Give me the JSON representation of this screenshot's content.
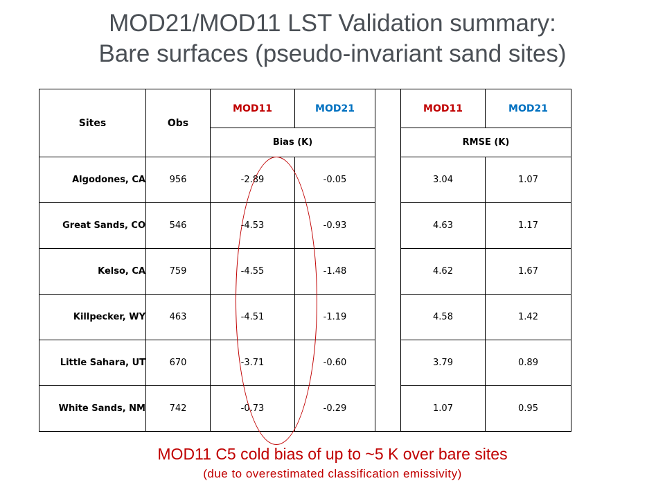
{
  "slide": {
    "title_line1": "MOD21/MOD11 LST Validation summary:",
    "title_line2": "Bare surfaces (pseudo-invariant sand sites)",
    "note_main": "MOD11 C5 cold bias of up to ~5 K over  bare sites",
    "note_sub": "(due to overestimated classification emissivity)"
  },
  "table": {
    "headers": {
      "sites": "Sites",
      "obs": "Obs",
      "bias_mod11": "MOD11",
      "bias_mod21": "MOD21",
      "rmse_mod11": "MOD11",
      "rmse_mod21": "MOD21",
      "bias_group": "Bias (K)",
      "rmse_group": "RMSE (K)"
    },
    "colors": {
      "mod11": "#c00000",
      "mod21": "#0070c0",
      "annotation": "#c00000"
    },
    "rows": [
      {
        "site": "Algodones,  CA",
        "obs": "956",
        "bias_mod11": "-2.89",
        "bias_mod21": "-0.05",
        "rmse_mod11": "3.04",
        "rmse_mod21": "1.07"
      },
      {
        "site": "Great Sands,  CO",
        "obs": "546",
        "bias_mod11": "-4.53",
        "bias_mod21": "-0.93",
        "rmse_mod11": "4.63",
        "rmse_mod21": "1.17"
      },
      {
        "site": "Kelso, CA",
        "obs": "759",
        "bias_mod11": "-4.55",
        "bias_mod21": "-1.48",
        "rmse_mod11": "4.62",
        "rmse_mod21": "1.67"
      },
      {
        "site": "Killpecker,  WY",
        "obs": "463",
        "bias_mod11": "-4.51",
        "bias_mod21": "-1.19",
        "rmse_mod11": "4.58",
        "rmse_mod21": "1.42"
      },
      {
        "site": "Little Sahara,  UT",
        "obs": "670",
        "bias_mod11": "-3.71",
        "bias_mod21": "-0.60",
        "rmse_mod11": "3.79",
        "rmse_mod21": "0.89"
      },
      {
        "site": "White Sands,  NM",
        "obs": "742",
        "bias_mod11": "-0.73",
        "bias_mod21": "-0.29",
        "rmse_mod11": "1.07",
        "rmse_mod21": "0.95"
      }
    ]
  }
}
